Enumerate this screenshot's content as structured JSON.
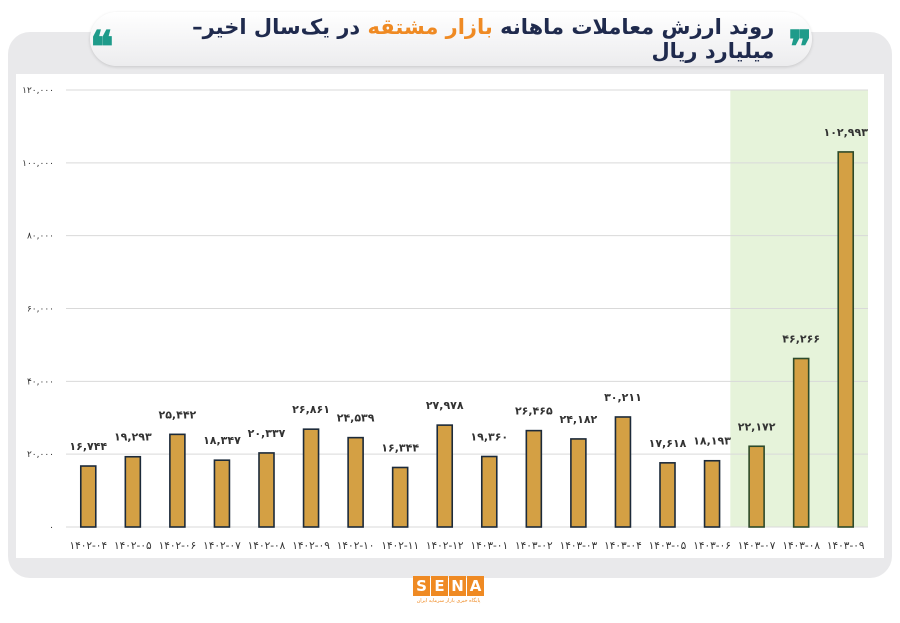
{
  "header": {
    "title_part1": "روند ارزش معاملات ماهانه",
    "title_highlight": "بازار مشتقه",
    "title_part2": "در یک‌سال اخیر– میلیارد ریال",
    "quote_open": "❞",
    "quote_close": "❝"
  },
  "logo": {
    "letters": [
      "S",
      "E",
      "N",
      "A"
    ],
    "subtitle": "پایگاه خبری بازار سرمایه ایران"
  },
  "colors": {
    "bar": "#d4a044",
    "bar_border": "#1c2a3a",
    "highlight_bar_border": "#2d4a2a",
    "highlight_bg": "#e6f3da",
    "title_accent": "#ef8a23",
    "quote": "#1e9b8a"
  },
  "chart_data": {
    "type": "bar",
    "title": "روند ارزش معاملات ماهانه بازار مشتقه در یک‌سال اخیر– میلیارد ریال",
    "categories": [
      "۱۴۰۲-۰۴",
      "۱۴۰۲-۰۵",
      "۱۴۰۲-۰۶",
      "۱۴۰۲-۰۷",
      "۱۴۰۲-۰۸",
      "۱۴۰۲-۰۹",
      "۱۴۰۲-۱۰",
      "۱۴۰۲-۱۱",
      "۱۴۰۲-۱۲",
      "۱۴۰۳-۰۱",
      "۱۴۰۳-۰۲",
      "۱۴۰۳-۰۳",
      "۱۴۰۳-۰۴",
      "۱۴۰۳-۰۵",
      "۱۴۰۳-۰۶",
      "۱۴۰۳-۰۷",
      "۱۴۰۳-۰۸",
      "۱۴۰۳-۰۹"
    ],
    "values": [
      16744,
      19293,
      25442,
      18347,
      20337,
      26861,
      24539,
      16344,
      27978,
      19360,
      26465,
      24182,
      30211,
      17618,
      18193,
      22172,
      46266,
      102993
    ],
    "value_labels": [
      "۱۶,۷۴۴",
      "۱۹,۲۹۳",
      "۲۵,۴۴۲",
      "۱۸,۳۴۷",
      "۲۰,۳۳۷",
      "۲۶,۸۶۱",
      "۲۴,۵۳۹",
      "۱۶,۳۴۴",
      "۲۷,۹۷۸",
      "۱۹,۳۶۰",
      "۲۶,۴۶۵",
      "۲۴,۱۸۲",
      "۳۰,۲۱۱",
      "۱۷,۶۱۸",
      "۱۸,۱۹۳",
      "۲۲,۱۷۲",
      "۴۶,۲۶۶",
      "۱۰۲,۹۹۳"
    ],
    "highlighted_categories": [
      "۱۴۰۳-۰۷",
      "۱۴۰۳-۰۸",
      "۱۴۰۳-۰۹"
    ],
    "ylim": [
      0,
      120000
    ],
    "yticks": [
      0,
      20000,
      40000,
      60000,
      80000,
      100000,
      120000
    ],
    "ytick_labels": [
      "۰",
      "۲۰,۰۰۰",
      "۴۰,۰۰۰",
      "۶۰,۰۰۰",
      "۸۰,۰۰۰",
      "۱۰۰,۰۰۰",
      "۱۲۰,۰۰۰"
    ],
    "grid": true,
    "xlabel": "",
    "ylabel": ""
  }
}
